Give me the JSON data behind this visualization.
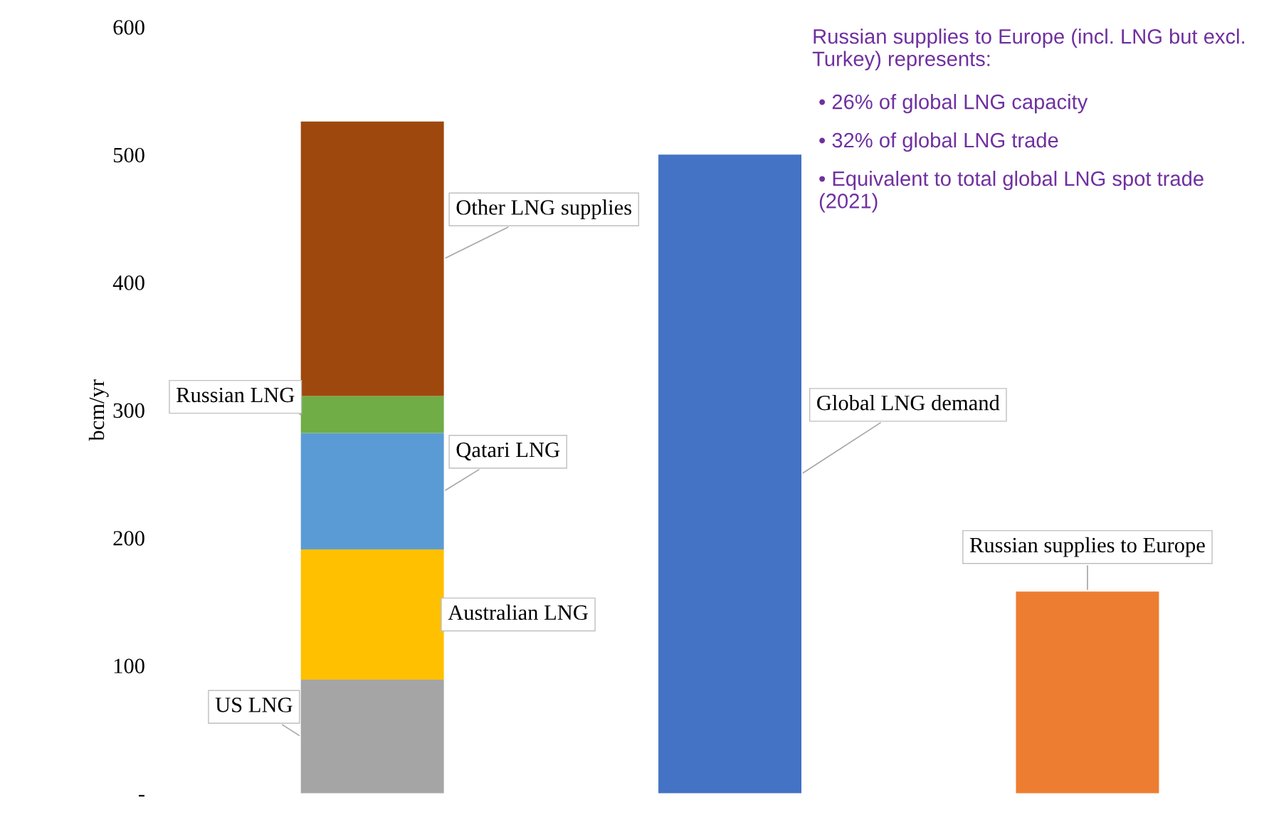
{
  "chart_data": {
    "type": "bar",
    "stacked": true,
    "ylabel": "bcm/yr",
    "categories": [
      null,
      null,
      null
    ],
    "series": [
      {
        "name": "US LNG",
        "color": "#a5a5a5",
        "values": [
          89,
          null,
          null
        ]
      },
      {
        "name": "Australian LNG",
        "color": "#ffc000",
        "values": [
          102,
          null,
          null
        ]
      },
      {
        "name": "Qatari LNG",
        "color": "#5b9bd5",
        "values": [
          91,
          null,
          null
        ]
      },
      {
        "name": "Russian LNG",
        "color": "#70ad47",
        "values": [
          29,
          null,
          null
        ]
      },
      {
        "name": "Other LNG supplies",
        "color": "#9e480e",
        "values": [
          215,
          null,
          null
        ]
      },
      {
        "name": "Global LNG demand",
        "color": "#4472c4",
        "values": [
          null,
          500,
          null
        ]
      },
      {
        "name": "Russian supplies to Europe",
        "color": "#ed7d31",
        "values": [
          null,
          null,
          158
        ]
      }
    ],
    "ylim": [
      0,
      600
    ],
    "yticks": [
      {
        "value": 0,
        "label": "-"
      },
      100,
      200,
      300,
      400,
      500,
      600
    ],
    "grid": false,
    "legend": false,
    "annotations": [
      "Russian supplies to Europe (incl. LNG but excl. Turkey) represents:",
      "• 26% of global LNG capacity",
      "• 32% of global LNG trade",
      "• Equivalent to total global LNG spot trade (2021)"
    ]
  }
}
